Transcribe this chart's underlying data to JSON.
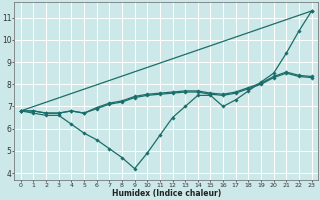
{
  "xlabel": "Humidex (Indice chaleur)",
  "background_color": "#cce8e8",
  "grid_color": "#ffffff",
  "line_color": "#1a6e6a",
  "xlim": [
    -0.5,
    23.5
  ],
  "ylim": [
    3.7,
    11.7
  ],
  "xticks": [
    0,
    1,
    2,
    3,
    4,
    5,
    6,
    7,
    8,
    9,
    10,
    11,
    12,
    13,
    14,
    15,
    16,
    17,
    18,
    19,
    20,
    21,
    22,
    23
  ],
  "yticks": [
    4,
    5,
    6,
    7,
    8,
    9,
    10,
    11
  ],
  "line1_x": [
    0,
    1,
    2,
    3,
    4,
    5,
    6,
    7,
    8,
    9,
    10,
    11,
    12,
    13,
    14,
    15,
    16,
    17,
    18,
    19,
    20,
    21,
    22,
    23
  ],
  "line1_y": [
    6.8,
    6.7,
    6.6,
    6.6,
    6.2,
    5.8,
    5.5,
    5.1,
    4.7,
    4.2,
    4.9,
    5.7,
    6.5,
    7.0,
    7.5,
    7.5,
    7.0,
    7.3,
    7.7,
    8.1,
    8.5,
    9.4,
    10.4,
    11.3
  ],
  "line2_x": [
    0,
    1,
    2,
    3,
    4,
    5,
    6,
    7,
    8,
    9,
    10,
    11,
    12,
    13,
    14,
    15,
    16,
    17,
    18,
    19,
    20,
    21,
    22,
    23
  ],
  "line2_y": [
    6.8,
    6.8,
    6.7,
    6.7,
    6.8,
    6.7,
    6.9,
    7.1,
    7.2,
    7.4,
    7.5,
    7.55,
    7.6,
    7.65,
    7.65,
    7.55,
    7.5,
    7.6,
    7.8,
    8.0,
    8.3,
    8.5,
    8.35,
    8.3
  ],
  "line3_x": [
    0,
    1,
    2,
    3,
    4,
    5,
    6,
    7,
    8,
    9,
    10,
    11,
    12,
    13,
    14,
    15,
    16,
    17,
    18,
    19,
    20,
    21,
    22,
    23
  ],
  "line3_y": [
    6.8,
    6.8,
    6.7,
    6.7,
    6.8,
    6.7,
    6.95,
    7.15,
    7.25,
    7.45,
    7.55,
    7.6,
    7.65,
    7.7,
    7.7,
    7.6,
    7.55,
    7.65,
    7.85,
    8.05,
    8.35,
    8.55,
    8.4,
    8.35
  ],
  "line4_x": [
    0,
    23
  ],
  "line4_y": [
    6.8,
    11.3
  ]
}
